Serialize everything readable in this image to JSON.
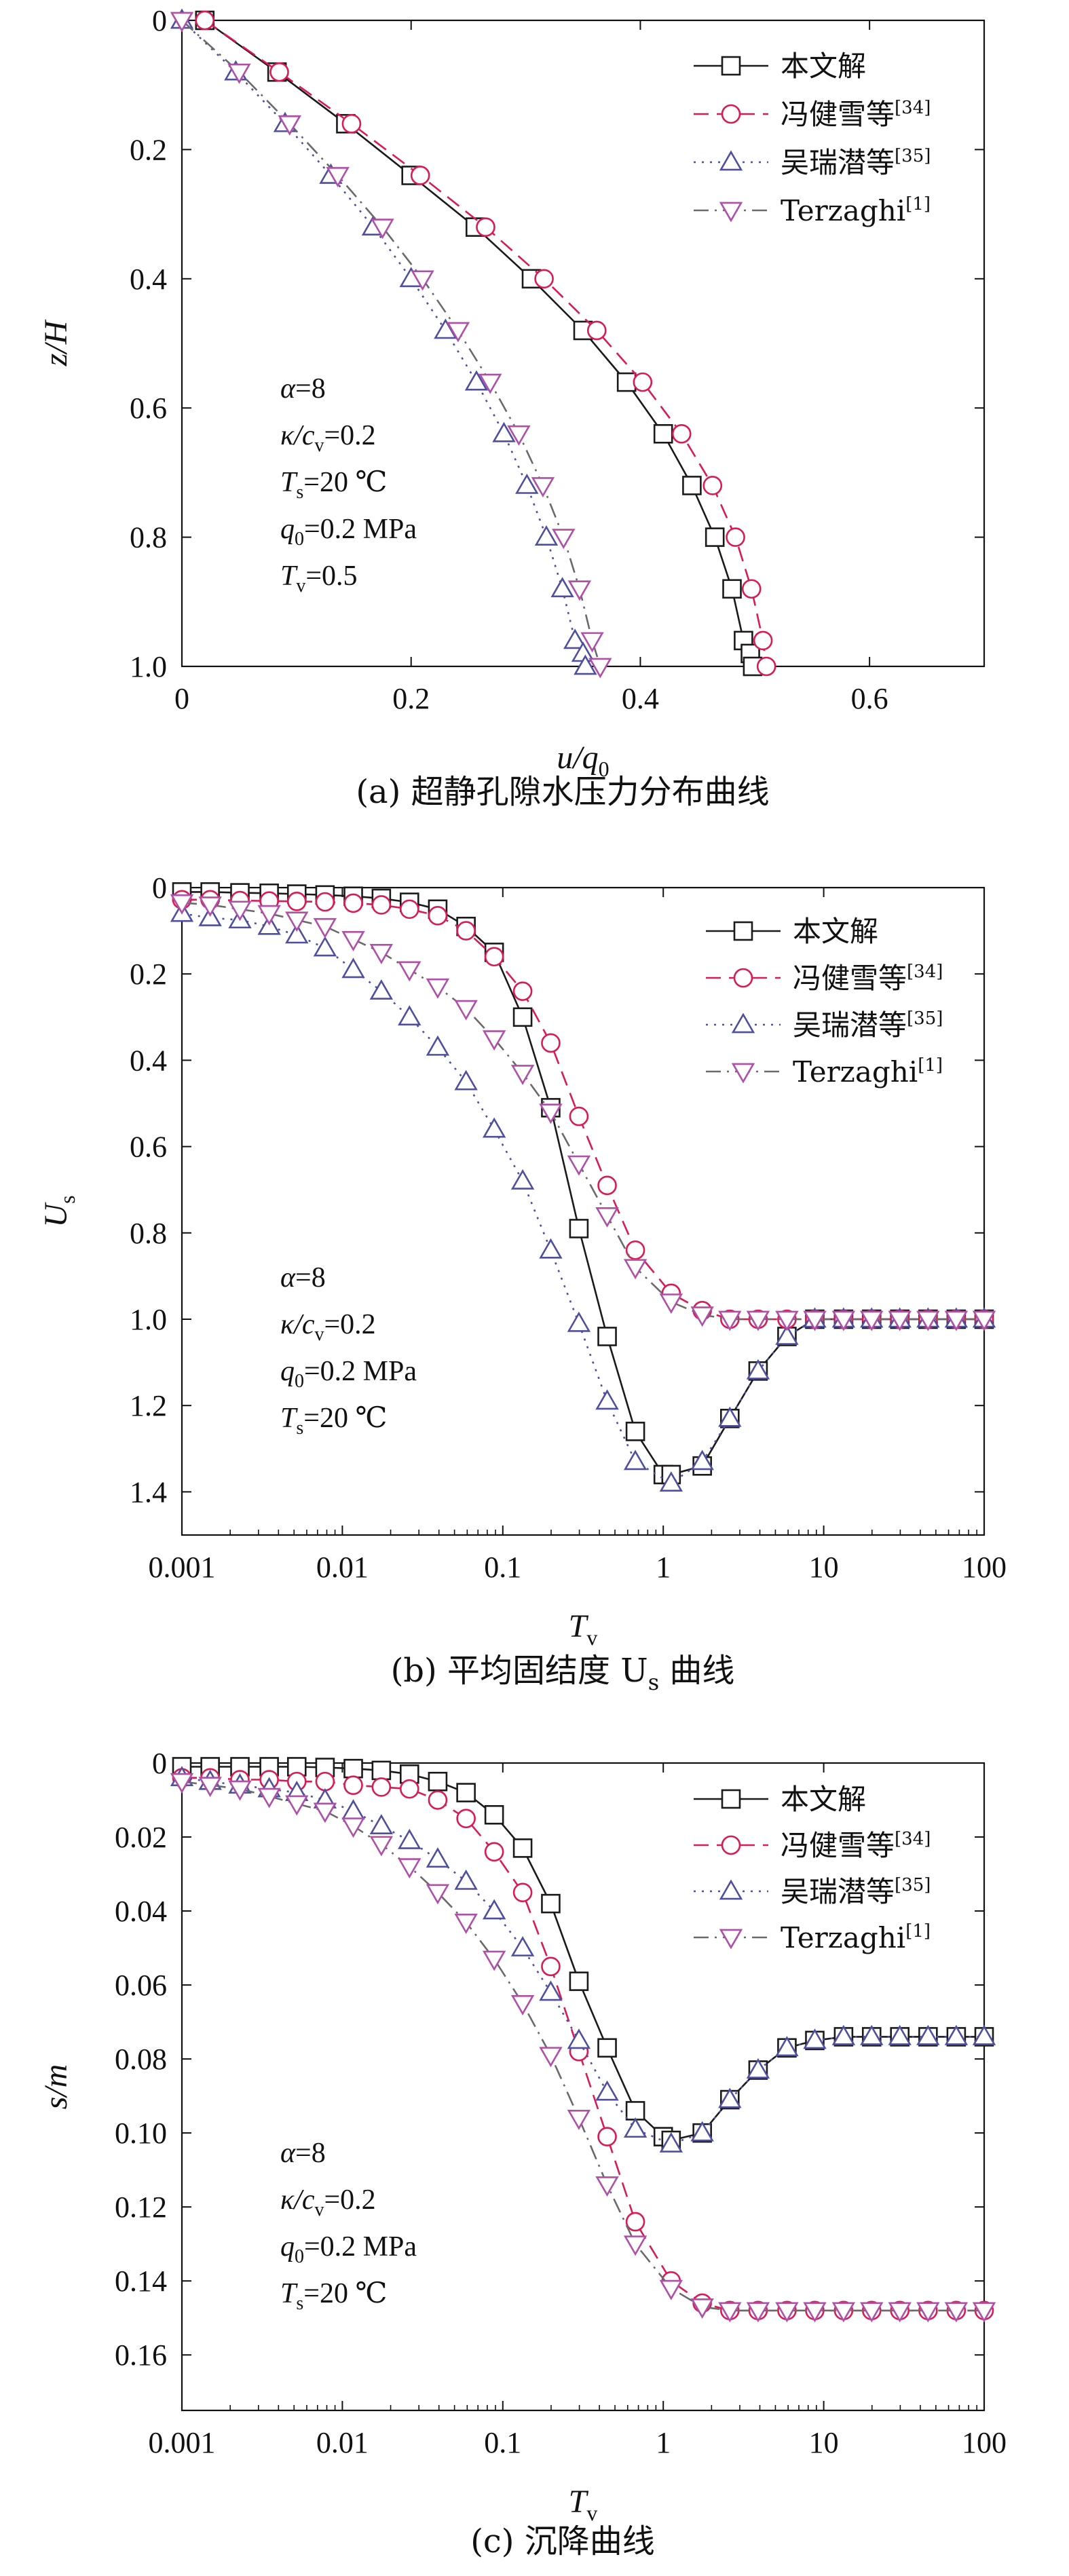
{
  "colors": {
    "benwen": "#1a1a1a",
    "feng": "#d81b55",
    "wu": "#4f4fa0",
    "terzaghi": "#6a6a6a",
    "terzaghi_marker": "#b04fa8"
  },
  "legend_labels": [
    "本文解",
    "冯健雪等",
    "吴瑞潜等",
    "Terzaghi"
  ],
  "legend_refs": [
    "",
    "[34]",
    "[35]",
    "[1]"
  ],
  "chart_data": [
    {
      "id": "a",
      "type": "line",
      "caption": "(a) 超静孔隙水压力分布曲线",
      "xlabel": "u/q",
      "xlabel_sub": "0",
      "ylabel": "z/H",
      "xlim": [
        0,
        0.7
      ],
      "ylim": [
        0,
        1.0
      ],
      "y_inverted": true,
      "x_scale": "linear",
      "xticks": [
        0,
        0.2,
        0.4,
        0.6
      ],
      "xtick_labels": [
        "0",
        "0.2",
        "0.4",
        "0.6"
      ],
      "yticks": [
        0,
        0.2,
        0.4,
        0.6,
        0.8,
        1.0
      ],
      "ytick_labels": [
        "0",
        "0.2",
        "0.4",
        "0.6",
        "0.8",
        "1.0"
      ],
      "legend_position": "top-right",
      "params": [
        {
          "sym": "α",
          "sub": "",
          "sym2": "",
          "sub2": "",
          "val": "=8"
        },
        {
          "sym": "κ",
          "sub": "",
          "sym2": "/c",
          "sub2": "v",
          "val": "=0.2"
        },
        {
          "sym": "T",
          "sub": "s",
          "sym2": "",
          "sub2": "",
          "val": "=20 ℃"
        },
        {
          "sym": "q",
          "sub": "0",
          "sym2": "",
          "sub2": "",
          "val": "=0.2 MPa"
        },
        {
          "sym": "T",
          "sub": "v",
          "sym2": "",
          "sub2": "",
          "val": "=0.5"
        }
      ],
      "series": [
        {
          "name": "本文解",
          "marker": "square",
          "dash": "solid",
          "x": [
            0.02,
            0.083,
            0.143,
            0.2,
            0.256,
            0.305,
            0.35,
            0.388,
            0.42,
            0.445,
            0.465,
            0.48,
            0.49,
            0.496,
            0.498
          ],
          "y": [
            0.0,
            0.08,
            0.16,
            0.24,
            0.32,
            0.4,
            0.48,
            0.56,
            0.64,
            0.72,
            0.8,
            0.88,
            0.96,
            0.98,
            1.0
          ]
        },
        {
          "name": "冯健雪等",
          "marker": "circle",
          "dash": "dash",
          "x": [
            0.02,
            0.085,
            0.148,
            0.208,
            0.265,
            0.316,
            0.362,
            0.402,
            0.436,
            0.463,
            0.483,
            0.497,
            0.507,
            0.51
          ],
          "y": [
            0.0,
            0.08,
            0.16,
            0.24,
            0.32,
            0.4,
            0.48,
            0.56,
            0.64,
            0.72,
            0.8,
            0.88,
            0.96,
            1.0
          ]
        },
        {
          "name": "吴瑞潜等",
          "marker": "triangle",
          "dash": "dot",
          "x": [
            0.0,
            0.047,
            0.09,
            0.13,
            0.167,
            0.2,
            0.23,
            0.257,
            0.281,
            0.301,
            0.318,
            0.332,
            0.343,
            0.35,
            0.352
          ],
          "y": [
            0.0,
            0.08,
            0.16,
            0.24,
            0.32,
            0.4,
            0.48,
            0.56,
            0.64,
            0.72,
            0.8,
            0.88,
            0.96,
            0.98,
            1.0
          ]
        },
        {
          "name": "Terzaghi",
          "marker": "triangle-down",
          "dash": "dashdot",
          "x": [
            0.0,
            0.05,
            0.094,
            0.136,
            0.175,
            0.21,
            0.241,
            0.269,
            0.294,
            0.315,
            0.333,
            0.347,
            0.358,
            0.365
          ],
          "y": [
            0.0,
            0.08,
            0.16,
            0.24,
            0.32,
            0.4,
            0.48,
            0.56,
            0.64,
            0.72,
            0.8,
            0.88,
            0.96,
            1.0
          ]
        }
      ]
    },
    {
      "id": "b",
      "type": "line",
      "caption": "(b) 平均固结度 U",
      "caption_sub": "s",
      "caption_tail": " 曲线",
      "xlabel": "T",
      "xlabel_sub": "v",
      "ylabel": "U",
      "ylabel_sub": "s",
      "xlim": [
        0.001,
        100
      ],
      "ylim": [
        0,
        1.5
      ],
      "y_inverted": true,
      "x_scale": "log",
      "xticks": [
        0.001,
        0.01,
        0.1,
        1,
        10,
        100
      ],
      "xtick_labels": [
        "0.001",
        "0.01",
        "0.1",
        "1",
        "10",
        "100"
      ],
      "yticks": [
        0,
        0.2,
        0.4,
        0.6,
        0.8,
        1.0,
        1.2,
        1.4
      ],
      "ytick_labels": [
        "0",
        "0.2",
        "0.4",
        "0.6",
        "0.8",
        "1.0",
        "1.2",
        "1.4"
      ],
      "legend_position": "top-right",
      "params": [
        {
          "sym": "α",
          "sub": "",
          "sym2": "",
          "sub2": "",
          "val": "=8"
        },
        {
          "sym": "κ",
          "sub": "",
          "sym2": "/c",
          "sub2": "v",
          "val": "=0.2"
        },
        {
          "sym": "q",
          "sub": "0",
          "sym2": "",
          "sub2": "",
          "val": "=0.2 MPa"
        },
        {
          "sym": "T",
          "sub": "s",
          "sym2": "",
          "sub2": "",
          "val": "=20 ℃"
        }
      ],
      "series": [
        {
          "name": "本文解",
          "marker": "square",
          "dash": "solid",
          "x": [
            0.001,
            0.0015,
            0.0023,
            0.0035,
            0.0052,
            0.0078,
            0.0117,
            0.0175,
            0.0262,
            0.0393,
            0.059,
            0.0884,
            0.133,
            0.199,
            0.298,
            0.447,
            0.67,
            1.0,
            1.12,
            1.75,
            2.6,
            3.9,
            5.9,
            8.8,
            13.3,
            19.9,
            29.8,
            44.7,
            67,
            100
          ],
          "y": [
            0.01,
            0.01,
            0.012,
            0.013,
            0.015,
            0.017,
            0.02,
            0.025,
            0.034,
            0.05,
            0.09,
            0.15,
            0.3,
            0.51,
            0.79,
            1.04,
            1.26,
            1.36,
            1.36,
            1.34,
            1.23,
            1.12,
            1.04,
            1.0,
            1.0,
            1.0,
            1.0,
            1.0,
            1.0,
            1.0
          ]
        },
        {
          "name": "冯健雪等",
          "marker": "circle",
          "dash": "dash",
          "x": [
            0.001,
            0.0015,
            0.0023,
            0.0035,
            0.0052,
            0.0078,
            0.0117,
            0.0175,
            0.0262,
            0.0393,
            0.059,
            0.0884,
            0.133,
            0.199,
            0.298,
            0.447,
            0.67,
            1.12,
            1.75,
            2.6,
            3.9,
            5.9,
            8.8,
            13.3,
            19.9,
            29.8,
            44.7,
            67,
            100
          ],
          "y": [
            0.028,
            0.028,
            0.03,
            0.031,
            0.032,
            0.033,
            0.036,
            0.04,
            0.05,
            0.065,
            0.1,
            0.16,
            0.24,
            0.36,
            0.53,
            0.69,
            0.84,
            0.94,
            0.98,
            1.0,
            1.0,
            1.0,
            1.0,
            1.0,
            1.0,
            1.0,
            1.0,
            1.0,
            1.0
          ]
        },
        {
          "name": "吴瑞潜等",
          "marker": "triangle",
          "dash": "dot",
          "x": [
            0.001,
            0.0015,
            0.0023,
            0.0035,
            0.0052,
            0.0078,
            0.0117,
            0.0175,
            0.0262,
            0.0393,
            0.059,
            0.0884,
            0.133,
            0.199,
            0.298,
            0.447,
            0.67,
            1.12,
            1.75,
            2.6,
            3.9,
            5.9,
            8.8,
            13.3,
            19.9,
            29.8,
            44.7,
            67,
            100
          ],
          "y": [
            0.06,
            0.07,
            0.075,
            0.09,
            0.11,
            0.14,
            0.19,
            0.24,
            0.3,
            0.37,
            0.45,
            0.56,
            0.68,
            0.84,
            1.01,
            1.19,
            1.33,
            1.38,
            1.33,
            1.23,
            1.12,
            1.04,
            1.0,
            1.0,
            1.0,
            1.0,
            1.0,
            1.0,
            1.0
          ]
        },
        {
          "name": "Terzaghi",
          "marker": "triangle-down",
          "dash": "dashdot",
          "x": [
            0.001,
            0.0015,
            0.0023,
            0.0035,
            0.0052,
            0.0078,
            0.0117,
            0.0175,
            0.0262,
            0.0393,
            0.059,
            0.0884,
            0.133,
            0.199,
            0.298,
            0.447,
            0.67,
            1.12,
            1.75,
            2.6,
            3.9,
            5.9,
            8.8,
            13.3,
            19.9,
            29.8,
            44.7,
            67,
            100
          ],
          "y": [
            0.035,
            0.04,
            0.05,
            0.06,
            0.075,
            0.09,
            0.12,
            0.15,
            0.19,
            0.23,
            0.28,
            0.35,
            0.43,
            0.52,
            0.64,
            0.76,
            0.88,
            0.96,
            0.99,
            1.0,
            1.0,
            1.0,
            1.0,
            1.0,
            1.0,
            1.0,
            1.0,
            1.0,
            1.0
          ]
        }
      ]
    },
    {
      "id": "c",
      "type": "line",
      "caption": "(c) 沉降曲线",
      "xlabel": "T",
      "xlabel_sub": "v",
      "ylabel": "s/m",
      "xlim": [
        0.001,
        100
      ],
      "ylim": [
        0,
        0.175
      ],
      "y_inverted": true,
      "x_scale": "log",
      "xticks": [
        0.001,
        0.01,
        0.1,
        1,
        10,
        100
      ],
      "xtick_labels": [
        "0.001",
        "0.01",
        "0.1",
        "1",
        "10",
        "100"
      ],
      "yticks": [
        0,
        0.02,
        0.04,
        0.06,
        0.08,
        0.1,
        0.12,
        0.14,
        0.16
      ],
      "ytick_labels": [
        "0",
        "0.02",
        "0.04",
        "0.06",
        "0.08",
        "0.10",
        "0.12",
        "0.14",
        "0.16"
      ],
      "legend_position": "top-right",
      "params": [
        {
          "sym": "α",
          "sub": "",
          "sym2": "",
          "sub2": "",
          "val": "=8"
        },
        {
          "sym": "κ",
          "sub": "",
          "sym2": "/c",
          "sub2": "v",
          "val": "=0.2"
        },
        {
          "sym": "q",
          "sub": "0",
          "sym2": "",
          "sub2": "",
          "val": "=0.2 MPa"
        },
        {
          "sym": "T",
          "sub": "s",
          "sym2": "",
          "sub2": "",
          "val": "=20 ℃"
        }
      ],
      "series": [
        {
          "name": "本文解",
          "marker": "square",
          "dash": "solid",
          "x": [
            0.001,
            0.0015,
            0.0023,
            0.0035,
            0.0052,
            0.0078,
            0.0117,
            0.0175,
            0.0262,
            0.0393,
            0.059,
            0.0884,
            0.133,
            0.199,
            0.298,
            0.447,
            0.67,
            1.0,
            1.12,
            1.75,
            2.6,
            3.9,
            5.9,
            8.8,
            13.3,
            19.9,
            29.8,
            44.7,
            67,
            100
          ],
          "y": [
            0.001,
            0.001,
            0.001,
            0.001,
            0.001,
            0.0012,
            0.0015,
            0.002,
            0.003,
            0.005,
            0.008,
            0.014,
            0.023,
            0.038,
            0.059,
            0.077,
            0.094,
            0.101,
            0.102,
            0.1,
            0.091,
            0.083,
            0.077,
            0.075,
            0.074,
            0.074,
            0.074,
            0.074,
            0.074,
            0.074
          ]
        },
        {
          "name": "冯健雪等",
          "marker": "circle",
          "dash": "dash",
          "x": [
            0.001,
            0.0015,
            0.0023,
            0.0035,
            0.0052,
            0.0078,
            0.0117,
            0.0175,
            0.0262,
            0.0393,
            0.059,
            0.0884,
            0.133,
            0.199,
            0.298,
            0.447,
            0.67,
            1.12,
            1.75,
            2.6,
            3.9,
            5.9,
            8.8,
            13.3,
            19.9,
            29.8,
            44.7,
            67,
            100
          ],
          "y": [
            0.004,
            0.004,
            0.0045,
            0.0045,
            0.005,
            0.005,
            0.006,
            0.0065,
            0.007,
            0.01,
            0.015,
            0.024,
            0.035,
            0.055,
            0.078,
            0.101,
            0.124,
            0.14,
            0.146,
            0.148,
            0.148,
            0.148,
            0.148,
            0.148,
            0.148,
            0.148,
            0.148,
            0.148,
            0.148
          ]
        },
        {
          "name": "吴瑞潜等",
          "marker": "triangle",
          "dash": "dot",
          "x": [
            0.001,
            0.0015,
            0.0023,
            0.0035,
            0.0052,
            0.0078,
            0.0117,
            0.0175,
            0.0262,
            0.0393,
            0.059,
            0.0884,
            0.133,
            0.199,
            0.298,
            0.447,
            0.67,
            1.12,
            1.75,
            2.6,
            3.9,
            5.9,
            8.8,
            13.3,
            19.9,
            29.8,
            44.7,
            67,
            100
          ],
          "y": [
            0.004,
            0.005,
            0.006,
            0.007,
            0.008,
            0.01,
            0.013,
            0.017,
            0.021,
            0.026,
            0.032,
            0.04,
            0.05,
            0.062,
            0.075,
            0.089,
            0.099,
            0.103,
            0.1,
            0.091,
            0.083,
            0.077,
            0.075,
            0.074,
            0.074,
            0.074,
            0.074,
            0.074,
            0.074
          ]
        },
        {
          "name": "Terzaghi",
          "marker": "triangle-down",
          "dash": "dashdot",
          "x": [
            0.001,
            0.0015,
            0.0023,
            0.0035,
            0.0052,
            0.0078,
            0.0117,
            0.0175,
            0.0262,
            0.0393,
            0.059,
            0.0884,
            0.133,
            0.199,
            0.298,
            0.447,
            0.67,
            1.12,
            1.75,
            2.6,
            3.9,
            5.9,
            8.8,
            13.3,
            19.9,
            29.8,
            44.7,
            67,
            100
          ],
          "y": [
            0.005,
            0.006,
            0.007,
            0.009,
            0.011,
            0.013,
            0.017,
            0.022,
            0.028,
            0.035,
            0.043,
            0.053,
            0.065,
            0.079,
            0.096,
            0.114,
            0.13,
            0.142,
            0.147,
            0.148,
            0.148,
            0.148,
            0.148,
            0.148,
            0.148,
            0.148,
            0.148,
            0.148,
            0.148
          ]
        }
      ]
    }
  ]
}
